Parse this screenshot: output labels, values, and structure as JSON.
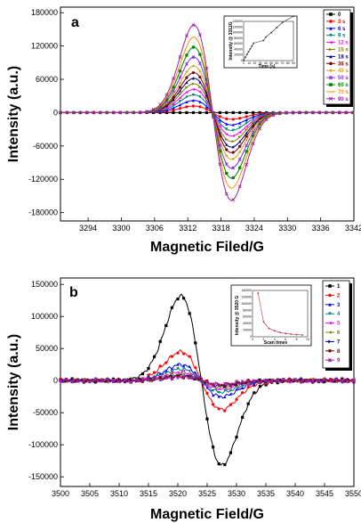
{
  "chart_data": [
    {
      "type": "line",
      "panel_label": "a",
      "xlabel": "Magnetic Filed/G",
      "ylabel": "Intensity (a.u.)",
      "xlim": [
        3289,
        3342
      ],
      "ylim": [
        -195000,
        190000
      ],
      "xticks": [
        3294,
        3300,
        3306,
        3312,
        3318,
        3324,
        3330,
        3336,
        3342
      ],
      "yticks": [
        180000,
        120000,
        60000,
        0,
        -60000,
        -120000,
        -180000
      ],
      "center": 3316.5,
      "series": [
        {
          "name": "0",
          "color": "#000000",
          "marker": "square",
          "amplitude": 0
        },
        {
          "name": "3 s",
          "color": "#ff0000",
          "marker": "circle",
          "amplitude": 12000
        },
        {
          "name": "6 s",
          "color": "#0000ff",
          "marker": "triangle",
          "amplitude": 22000
        },
        {
          "name": "9 s",
          "color": "#008080",
          "marker": "tri-down",
          "amplitude": 32000
        },
        {
          "name": "12 s",
          "color": "#ff00ff",
          "marker": "tri-left",
          "amplitude": 42000
        },
        {
          "name": "15 s",
          "color": "#808000",
          "marker": "tri-right",
          "amplitude": 52000
        },
        {
          "name": "18 s",
          "color": "#000080",
          "marker": "triangle",
          "amplitude": 62000
        },
        {
          "name": "36 s",
          "color": "#800000",
          "marker": "circle",
          "amplitude": 72000
        },
        {
          "name": "40 s",
          "color": "#d4a017",
          "marker": "diamond",
          "amplitude": 84000
        },
        {
          "name": "50 s",
          "color": "#8a2be2",
          "marker": "star",
          "amplitude": 100000
        },
        {
          "name": "60 s",
          "color": "#008000",
          "marker": "square",
          "amplitude": 118000
        },
        {
          "name": "70 s",
          "color": "#ff8c00",
          "marker": "none",
          "amplitude": 136000
        },
        {
          "name": "90 s",
          "color": "#a020a0",
          "marker": "cross",
          "amplitude": 158000
        }
      ],
      "inset": {
        "xlabel": "Time (s)",
        "ylabel": "Intensity @ 3312G",
        "xticks": [
          0,
          10,
          20,
          30,
          40,
          50,
          60,
          70,
          80,
          90
        ],
        "yticks": [
          0,
          20000,
          40000,
          60000,
          80000,
          100000,
          120000,
          140000
        ],
        "x": [
          0,
          3,
          6,
          9,
          12,
          15,
          18,
          36,
          40,
          50,
          60,
          70,
          90
        ],
        "y": [
          0,
          12000,
          22000,
          32000,
          42000,
          52000,
          62000,
          72000,
          84000,
          100000,
          118000,
          136000,
          158000
        ]
      }
    },
    {
      "type": "line",
      "panel_label": "b",
      "xlabel": "Magnetic Field/G",
      "ylabel": "Intensity (a.u.)",
      "xlim": [
        3500,
        3550
      ],
      "ylim": [
        -165000,
        160000
      ],
      "xticks": [
        3500,
        3505,
        3510,
        3515,
        3520,
        3525,
        3530,
        3535,
        3540,
        3545,
        3550
      ],
      "yticks": [
        150000,
        100000,
        50000,
        0,
        -50000,
        -100000,
        -150000
      ],
      "center": 3524,
      "series": [
        {
          "name": "1",
          "color": "#000000",
          "marker": "square",
          "amplitude": 132000
        },
        {
          "name": "2",
          "color": "#ff0000",
          "marker": "circle",
          "amplitude": 45000
        },
        {
          "name": "3",
          "color": "#0000ff",
          "marker": "triangle",
          "amplitude": 25000
        },
        {
          "name": "4",
          "color": "#008080",
          "marker": "tri-down",
          "amplitude": 18000
        },
        {
          "name": "5",
          "color": "#ff00ff",
          "marker": "tri-left",
          "amplitude": 13000
        },
        {
          "name": "6",
          "color": "#808000",
          "marker": "tri-left",
          "amplitude": 10000
        },
        {
          "name": "7",
          "color": "#000080",
          "marker": "tri-right",
          "amplitude": 8000
        },
        {
          "name": "8",
          "color": "#800000",
          "marker": "circle",
          "amplitude": 6500
        },
        {
          "name": "9",
          "color": "#a020a0",
          "marker": "star",
          "amplitude": 5500
        }
      ],
      "inset": {
        "xlabel": "Scan times",
        "ylabel": "Intensity @ 3520 G",
        "xticks": [
          0,
          2,
          4,
          6,
          8,
          10
        ],
        "yticks": [
          0,
          20000,
          40000,
          60000,
          80000,
          100000,
          120000,
          140000
        ],
        "x": [
          1,
          2,
          3,
          4,
          5,
          6,
          7,
          8,
          9
        ],
        "y": [
          132000,
          45000,
          25000,
          18000,
          13000,
          10000,
          8000,
          6500,
          5500
        ]
      }
    }
  ]
}
